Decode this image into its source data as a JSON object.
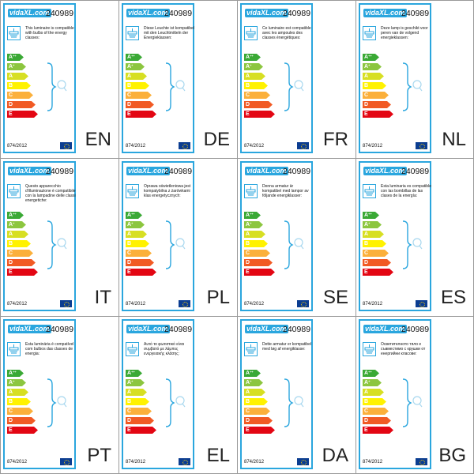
{
  "logo_text": "vidaXL.com",
  "product_code": "240989",
  "regulation": "874/2012",
  "icons": {
    "lamp": "ceiling-lamp-icon",
    "flag": "eu-flag-icon",
    "bulb": "light-bulb-icon"
  },
  "energy_classes": [
    {
      "label": "A",
      "sup": "++",
      "color": "#3aa935"
    },
    {
      "label": "A",
      "sup": "+",
      "color": "#8cc63f"
    },
    {
      "label": "A",
      "sup": "",
      "color": "#d7df23"
    },
    {
      "label": "B",
      "sup": "",
      "color": "#fff200"
    },
    {
      "label": "C",
      "sup": "",
      "color": "#fbb03b"
    },
    {
      "label": "D",
      "sup": "",
      "color": "#f15a24"
    },
    {
      "label": "E",
      "sup": "",
      "color": "#e30613"
    }
  ],
  "colors": {
    "frame": "#2aa6de",
    "grid_border": "#9a9a9a",
    "eu_blue": "#0b3d91"
  },
  "labels": [
    {
      "lang": "EN",
      "text": "This luminaire is compatible with bulbs of the energy classes:"
    },
    {
      "lang": "DE",
      "text": "Diese Leuchte ist kompatibel mit den Leuchtmitteln der Energieklassen:"
    },
    {
      "lang": "FR",
      "text": "Ce luminaire est compatible avec les ampoules des classes énergétiques:"
    },
    {
      "lang": "NL",
      "text": "Deze lamp is geschikt voor peren van de volgend energieklassen:"
    },
    {
      "lang": "IT",
      "text": "Questo apparecchio d'illuminazione è compatibile con la lampadine delle classi energetiche:"
    },
    {
      "lang": "PL",
      "text": "Oprawa oświetleniowa jest kompatybilna z żarówkami klas energetycznych:"
    },
    {
      "lang": "SE",
      "text": "Denna armatur är kompatibel med lampor av följande energiklasser:"
    },
    {
      "lang": "ES",
      "text": "Esta luminaria es compatible con las bombillas de las clases de la energía:"
    },
    {
      "lang": "PT",
      "text": "Esta luminária é compatível com bulbos das classes de energia:"
    },
    {
      "lang": "EL",
      "text": "Αυτό το φωτιστικό είναι συμβατό με λάμπες ενεργειακής κλάσης:"
    },
    {
      "lang": "DA",
      "text": "Dette armatur er kompatibel med løg af energiklasse:"
    },
    {
      "lang": "BG",
      "text": "Осветителното тяло е съвместимо с крушки от енергийни класове:"
    }
  ]
}
